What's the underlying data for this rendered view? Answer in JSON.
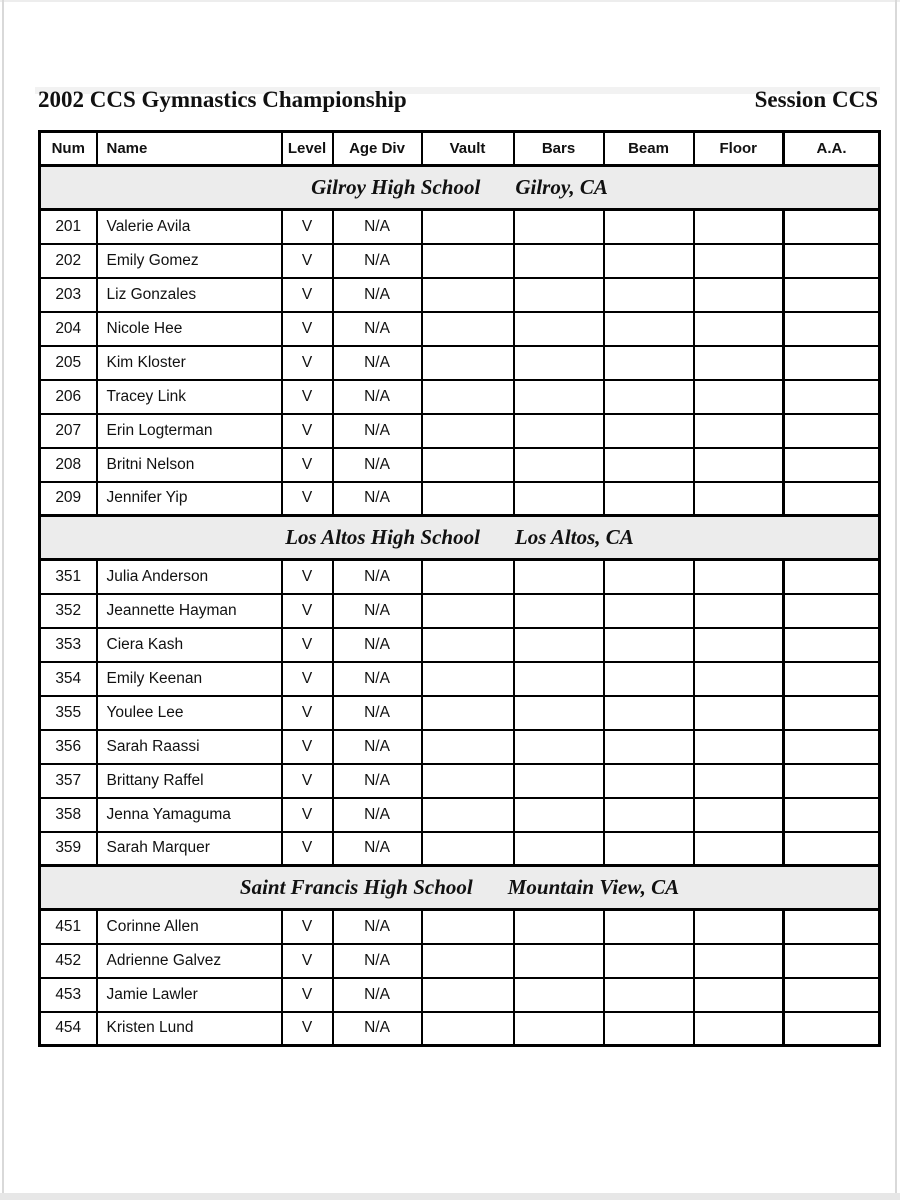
{
  "header": {
    "title": "2002 CCS Gymnastics Championship",
    "session": "Session CCS"
  },
  "colors": {
    "section_band": "#ececec",
    "border": "#000000"
  },
  "table": {
    "columns": [
      "Num",
      "Name",
      "Level",
      "Age Div",
      "Vault",
      "Bars",
      "Beam",
      "Floor",
      "A.A."
    ],
    "sections": [
      {
        "school": "Gilroy High School",
        "location": "Gilroy, CA",
        "rows": [
          [
            "201",
            "Valerie Avila",
            "V",
            "N/A",
            "",
            "",
            "",
            "",
            ""
          ],
          [
            "202",
            "Emily Gomez",
            "V",
            "N/A",
            "",
            "",
            "",
            "",
            ""
          ],
          [
            "203",
            "Liz Gonzales",
            "V",
            "N/A",
            "",
            "",
            "",
            "",
            ""
          ],
          [
            "204",
            "Nicole Hee",
            "V",
            "N/A",
            "",
            "",
            "",
            "",
            ""
          ],
          [
            "205",
            "Kim Kloster",
            "V",
            "N/A",
            "",
            "",
            "",
            "",
            ""
          ],
          [
            "206",
            "Tracey Link",
            "V",
            "N/A",
            "",
            "",
            "",
            "",
            ""
          ],
          [
            "207",
            "Erin Logterman",
            "V",
            "N/A",
            "",
            "",
            "",
            "",
            ""
          ],
          [
            "208",
            "Britni Nelson",
            "V",
            "N/A",
            "",
            "",
            "",
            "",
            ""
          ],
          [
            "209",
            "Jennifer Yip",
            "V",
            "N/A",
            "",
            "",
            "",
            "",
            ""
          ]
        ]
      },
      {
        "school": "Los Altos High School",
        "location": "Los Altos, CA",
        "rows": [
          [
            "351",
            "Julia Anderson",
            "V",
            "N/A",
            "",
            "",
            "",
            "",
            ""
          ],
          [
            "352",
            "Jeannette Hayman",
            "V",
            "N/A",
            "",
            "",
            "",
            "",
            ""
          ],
          [
            "353",
            "Ciera Kash",
            "V",
            "N/A",
            "",
            "",
            "",
            "",
            ""
          ],
          [
            "354",
            "Emily Keenan",
            "V",
            "N/A",
            "",
            "",
            "",
            "",
            ""
          ],
          [
            "355",
            "Youlee Lee",
            "V",
            "N/A",
            "",
            "",
            "",
            "",
            ""
          ],
          [
            "356",
            "Sarah Raassi",
            "V",
            "N/A",
            "",
            "",
            "",
            "",
            ""
          ],
          [
            "357",
            "Brittany Raffel",
            "V",
            "N/A",
            "",
            "",
            "",
            "",
            ""
          ],
          [
            "358",
            "Jenna Yamaguma",
            "V",
            "N/A",
            "",
            "",
            "",
            "",
            ""
          ],
          [
            "359",
            "Sarah Marquer",
            "V",
            "N/A",
            "",
            "",
            "",
            "",
            ""
          ]
        ]
      },
      {
        "school": "Saint Francis High School",
        "location": "Mountain View, CA",
        "rows": [
          [
            "451",
            "Corinne Allen",
            "V",
            "N/A",
            "",
            "",
            "",
            "",
            ""
          ],
          [
            "452",
            "Adrienne Galvez",
            "V",
            "N/A",
            "",
            "",
            "",
            "",
            ""
          ],
          [
            "453",
            "Jamie Lawler",
            "V",
            "N/A",
            "",
            "",
            "",
            "",
            ""
          ],
          [
            "454",
            "Kristen Lund",
            "V",
            "N/A",
            "",
            "",
            "",
            "",
            ""
          ]
        ]
      }
    ]
  }
}
